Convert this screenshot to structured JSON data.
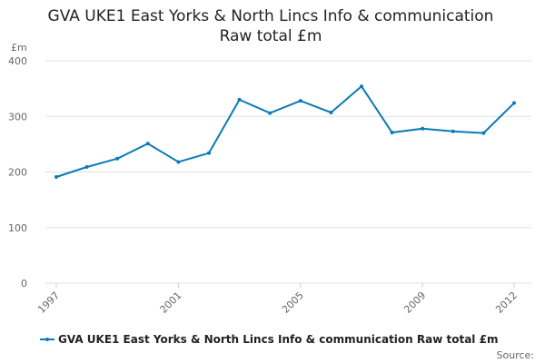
{
  "chart_data": {
    "type": "line",
    "title": [
      "GVA UKE1 East Yorks & North Lincs Info & communication",
      "Raw total £m"
    ],
    "y_label": "£m",
    "source": "Source:",
    "x": [
      1997,
      1998,
      1999,
      2000,
      2001,
      2002,
      2003,
      2004,
      2005,
      2006,
      2007,
      2008,
      2009,
      2010,
      2011,
      2012
    ],
    "series": [
      {
        "name": "GVA UKE1 East Yorks & North Lincs Info & communication Raw total £m",
        "color": "#0b7ab7",
        "values": [
          191,
          209,
          224,
          251,
          218,
          234,
          330,
          306,
          328,
          307,
          354,
          271,
          278,
          273,
          270,
          324
        ]
      }
    ],
    "xlim": [
      1997,
      2012
    ],
    "xticks": [
      1997,
      2001,
      2005,
      2009,
      2012
    ],
    "ylim": [
      0,
      400
    ],
    "yticks": [
      0,
      100,
      200,
      300,
      400
    ],
    "grid": true
  }
}
